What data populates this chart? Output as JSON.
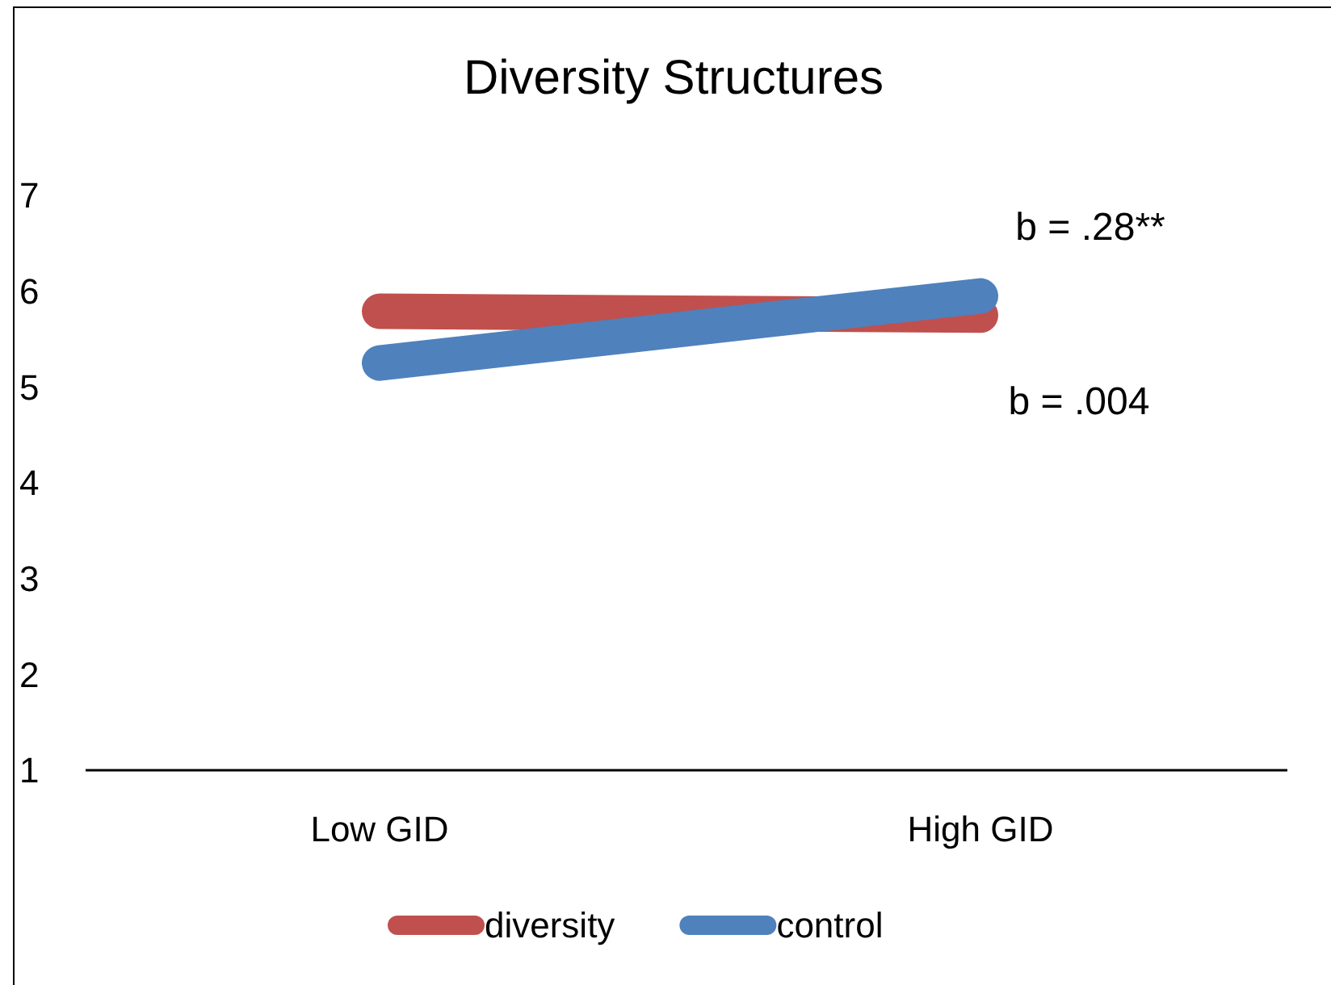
{
  "chart_data": {
    "type": "line",
    "title": "Diversity Structures",
    "categories": [
      "Low GID",
      "High GID"
    ],
    "series": [
      {
        "name": "diversity",
        "color": "#c0504d",
        "values": [
          5.79,
          5.75
        ]
      },
      {
        "name": "control",
        "color": "#4f81bd",
        "values": [
          5.25,
          5.95
        ]
      }
    ],
    "ylim": [
      1,
      7
    ],
    "yticks": [
      1,
      2,
      3,
      4,
      5,
      6,
      7
    ],
    "grid": false,
    "legend": "bottom",
    "line_style": "solid",
    "annotations": [
      "b = .28**",
      "b = .004"
    ]
  }
}
